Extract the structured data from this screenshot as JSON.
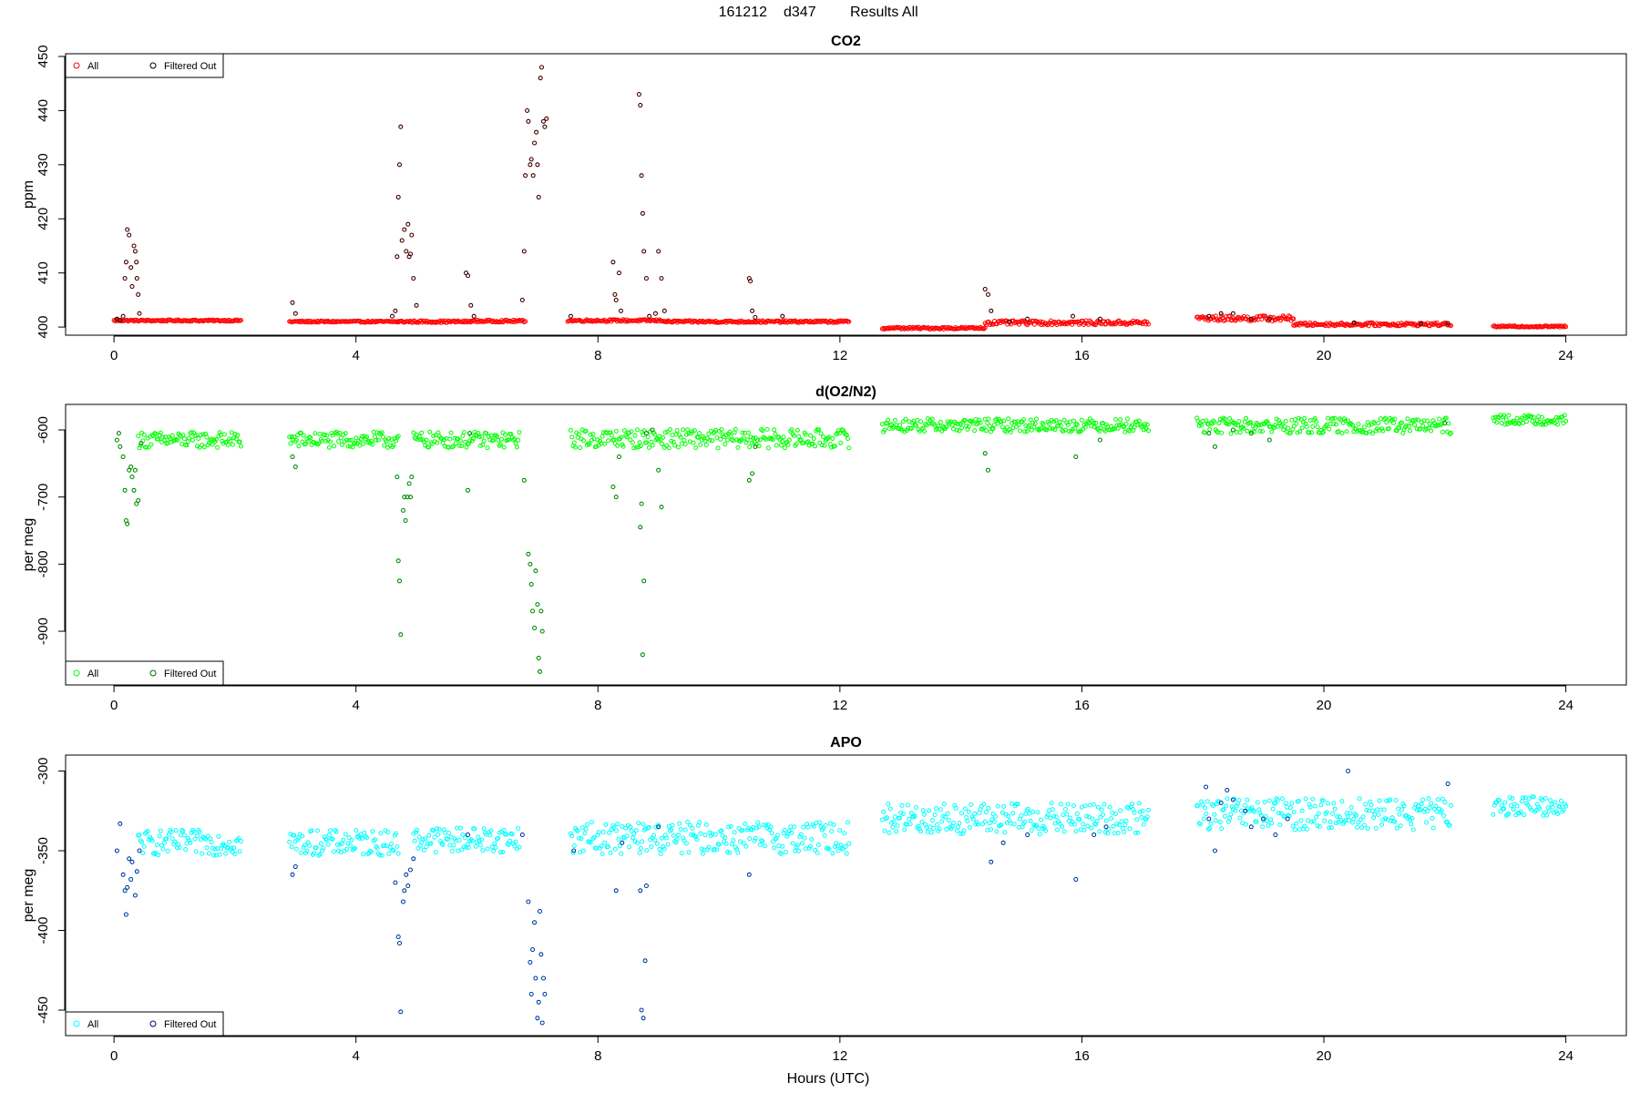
{
  "figure": {
    "title_date": "161212",
    "title_id": "d347",
    "title_rest": "Results All",
    "xlabel": "Hours (UTC)"
  },
  "chart_data": [
    {
      "type": "scatter",
      "title": "CO2",
      "ylabel": "ppm",
      "xlim": [
        -0.8,
        25.0
      ],
      "ylim": [
        398.5,
        450.5
      ],
      "xticks": [
        0,
        4,
        8,
        12,
        16,
        20,
        24
      ],
      "yticks": [
        400,
        410,
        420,
        430,
        440,
        450
      ],
      "legend": {
        "placement": "top-left",
        "entries": [
          "All",
          "Filtered Out"
        ]
      },
      "colors": {
        "all": "#ff0000",
        "filtered": "#000000"
      },
      "segments": [
        {
          "x0": 0.0,
          "x1": 2.1,
          "base": 401.2,
          "noise": 0.15
        },
        {
          "x0": 2.9,
          "x1": 4.7,
          "base": 401.0,
          "noise": 0.15
        },
        {
          "x0": 4.7,
          "x1": 5.9,
          "base": 401.0,
          "noise": 0.2
        },
        {
          "x0": 5.9,
          "x1": 6.8,
          "base": 401.1,
          "noise": 0.2
        },
        {
          "x0": 7.5,
          "x1": 9.1,
          "base": 401.2,
          "noise": 0.2
        },
        {
          "x0": 9.1,
          "x1": 12.15,
          "base": 401.0,
          "noise": 0.2
        },
        {
          "x0": 12.7,
          "x1": 14.4,
          "base": 399.8,
          "noise": 0.2
        },
        {
          "x0": 14.4,
          "x1": 17.1,
          "base": 400.8,
          "noise": 0.4
        },
        {
          "x0": 17.9,
          "x1": 19.5,
          "base": 401.6,
          "noise": 0.5
        },
        {
          "x0": 19.5,
          "x1": 22.1,
          "base": 400.5,
          "noise": 0.3
        },
        {
          "x0": 22.8,
          "x1": 24.0,
          "base": 400.1,
          "noise": 0.15
        }
      ],
      "filtered_points": [
        [
          0.05,
          401.5
        ],
        [
          0.1,
          401.3
        ],
        [
          0.15,
          402.0
        ],
        [
          0.18,
          409.0
        ],
        [
          0.2,
          412.0
        ],
        [
          0.22,
          418.0
        ],
        [
          0.25,
          417.0
        ],
        [
          0.28,
          411.0
        ],
        [
          0.3,
          407.5
        ],
        [
          0.33,
          415.0
        ],
        [
          0.35,
          414.0
        ],
        [
          0.37,
          412.0
        ],
        [
          0.38,
          409.0
        ],
        [
          0.4,
          406.0
        ],
        [
          0.42,
          402.5
        ],
        [
          2.95,
          404.5
        ],
        [
          3.0,
          402.5
        ],
        [
          4.6,
          402.0
        ],
        [
          4.65,
          403.0
        ],
        [
          4.68,
          413.0
        ],
        [
          4.7,
          424.0
        ],
        [
          4.72,
          430.0
        ],
        [
          4.74,
          437.0
        ],
        [
          4.76,
          416.0
        ],
        [
          4.8,
          418.0
        ],
        [
          4.83,
          414.0
        ],
        [
          4.86,
          419.0
        ],
        [
          4.88,
          413.0
        ],
        [
          4.9,
          413.5
        ],
        [
          4.92,
          417.0
        ],
        [
          4.95,
          409.0
        ],
        [
          5.0,
          404.0
        ],
        [
          5.82,
          410.0
        ],
        [
          5.85,
          409.5
        ],
        [
          5.9,
          404.0
        ],
        [
          5.95,
          402.0
        ],
        [
          6.75,
          405.0
        ],
        [
          6.78,
          414.0
        ],
        [
          6.8,
          428.0
        ],
        [
          6.83,
          440.0
        ],
        [
          6.85,
          438.0
        ],
        [
          6.88,
          430.0
        ],
        [
          6.9,
          431.0
        ],
        [
          6.93,
          428.0
        ],
        [
          6.95,
          434.0
        ],
        [
          6.98,
          436.0
        ],
        [
          7.0,
          430.0
        ],
        [
          7.02,
          424.0
        ],
        [
          7.05,
          446.0
        ],
        [
          7.07,
          448.0
        ],
        [
          7.1,
          438.0
        ],
        [
          7.12,
          437.0
        ],
        [
          7.15,
          438.5
        ],
        [
          7.55,
          402.0
        ],
        [
          8.25,
          412.0
        ],
        [
          8.28,
          406.0
        ],
        [
          8.3,
          405.0
        ],
        [
          8.35,
          410.0
        ],
        [
          8.38,
          403.0
        ],
        [
          8.68,
          443.0
        ],
        [
          8.7,
          441.0
        ],
        [
          8.72,
          428.0
        ],
        [
          8.74,
          421.0
        ],
        [
          8.76,
          414.0
        ],
        [
          8.8,
          409.0
        ],
        [
          8.85,
          402.0
        ],
        [
          8.95,
          402.5
        ],
        [
          9.0,
          414.0
        ],
        [
          9.05,
          409.0
        ],
        [
          9.1,
          403.0
        ],
        [
          10.5,
          409.0
        ],
        [
          10.52,
          408.5
        ],
        [
          10.55,
          403.0
        ],
        [
          10.6,
          401.8
        ],
        [
          11.05,
          402.0
        ],
        [
          14.4,
          407.0
        ],
        [
          14.45,
          406.0
        ],
        [
          14.5,
          403.0
        ],
        [
          14.8,
          401.0
        ],
        [
          15.1,
          401.5
        ],
        [
          15.85,
          402.0
        ],
        [
          16.3,
          401.5
        ],
        [
          18.1,
          402.0
        ],
        [
          18.3,
          402.5
        ],
        [
          18.5,
          402.5
        ],
        [
          18.8,
          401.5
        ],
        [
          19.1,
          401.5
        ],
        [
          20.5,
          400.8
        ],
        [
          21.6,
          400.6
        ],
        [
          22.05,
          400.7
        ]
      ]
    },
    {
      "type": "scatter",
      "title": "d(O2/N2)",
      "ylabel": "per meg",
      "xlim": [
        -0.8,
        25.0
      ],
      "ylim": [
        -980,
        -562
      ],
      "xticks": [
        0,
        4,
        8,
        12,
        16,
        20,
        24
      ],
      "yticks": [
        -600,
        -700,
        -800,
        -900
      ],
      "legend": {
        "placement": "bottom-left",
        "entries": [
          "All",
          "Filtered Out"
        ]
      },
      "colors": {
        "all": "#00ff00",
        "filtered": "#006400"
      },
      "segments": [
        {
          "x0": 0.4,
          "x1": 2.1,
          "base": -615,
          "noise": 12
        },
        {
          "x0": 2.9,
          "x1": 4.7,
          "base": -615,
          "noise": 12
        },
        {
          "x0": 4.95,
          "x1": 6.7,
          "base": -615,
          "noise": 12
        },
        {
          "x0": 7.55,
          "x1": 12.15,
          "base": -613,
          "noise": 14
        },
        {
          "x0": 12.7,
          "x1": 17.1,
          "base": -593,
          "noise": 10
        },
        {
          "x0": 17.9,
          "x1": 22.1,
          "base": -594,
          "noise": 12
        },
        {
          "x0": 22.8,
          "x1": 24.0,
          "base": -585,
          "noise": 7
        }
      ],
      "filtered_points": [
        [
          0.05,
          -615
        ],
        [
          0.08,
          -605
        ],
        [
          0.1,
          -625
        ],
        [
          0.15,
          -640
        ],
        [
          0.18,
          -690
        ],
        [
          0.2,
          -735
        ],
        [
          0.22,
          -740
        ],
        [
          0.25,
          -660
        ],
        [
          0.28,
          -655
        ],
        [
          0.3,
          -670
        ],
        [
          0.33,
          -690
        ],
        [
          0.35,
          -660
        ],
        [
          0.37,
          -710
        ],
        [
          0.4,
          -705
        ],
        [
          0.45,
          -620
        ],
        [
          2.95,
          -640
        ],
        [
          3.0,
          -655
        ],
        [
          4.68,
          -670
        ],
        [
          4.7,
          -795
        ],
        [
          4.72,
          -825
        ],
        [
          4.74,
          -905
        ],
        [
          4.78,
          -720
        ],
        [
          4.8,
          -700
        ],
        [
          4.82,
          -735
        ],
        [
          4.85,
          -700
        ],
        [
          4.88,
          -680
        ],
        [
          4.9,
          -700
        ],
        [
          4.92,
          -670
        ],
        [
          5.85,
          -690
        ],
        [
          5.88,
          -605
        ],
        [
          6.78,
          -675
        ],
        [
          6.85,
          -785
        ],
        [
          6.88,
          -800
        ],
        [
          6.9,
          -830
        ],
        [
          6.92,
          -870
        ],
        [
          6.95,
          -895
        ],
        [
          6.97,
          -810
        ],
        [
          7.0,
          -860
        ],
        [
          7.02,
          -940
        ],
        [
          7.04,
          -960
        ],
        [
          7.06,
          -870
        ],
        [
          7.08,
          -900
        ],
        [
          8.25,
          -685
        ],
        [
          8.3,
          -700
        ],
        [
          8.35,
          -640
        ],
        [
          8.7,
          -745
        ],
        [
          8.72,
          -710
        ],
        [
          8.74,
          -935
        ],
        [
          8.76,
          -825
        ],
        [
          8.8,
          -605
        ],
        [
          8.9,
          -600
        ],
        [
          9.0,
          -660
        ],
        [
          9.05,
          -715
        ],
        [
          10.5,
          -675
        ],
        [
          10.55,
          -665
        ],
        [
          10.6,
          -625
        ],
        [
          14.4,
          -635
        ],
        [
          14.45,
          -660
        ],
        [
          15.9,
          -640
        ],
        [
          16.3,
          -615
        ],
        [
          18.1,
          -605
        ],
        [
          18.2,
          -625
        ],
        [
          18.5,
          -600
        ],
        [
          18.8,
          -605
        ],
        [
          19.1,
          -615
        ],
        [
          22.0,
          -590
        ]
      ]
    },
    {
      "type": "scatter",
      "title": "APO",
      "ylabel": "per meg",
      "xlim": [
        -0.8,
        25.0
      ],
      "ylim": [
        -466,
        -290
      ],
      "xticks": [
        0,
        4,
        8,
        12,
        16,
        20,
        24
      ],
      "yticks": [
        -300,
        -350,
        -400,
        -450
      ],
      "legend": {
        "placement": "bottom-left",
        "entries": [
          "All",
          "Filtered Out"
        ]
      },
      "colors": {
        "all": "#00ffff",
        "filtered": "#000080"
      },
      "segments": [
        {
          "x0": 0.4,
          "x1": 2.1,
          "base": -345,
          "noise": 8
        },
        {
          "x0": 2.9,
          "x1": 4.7,
          "base": -345,
          "noise": 8
        },
        {
          "x0": 4.95,
          "x1": 6.7,
          "base": -343,
          "noise": 8
        },
        {
          "x0": 7.55,
          "x1": 12.15,
          "base": -342,
          "noise": 10
        },
        {
          "x0": 12.7,
          "x1": 17.1,
          "base": -330,
          "noise": 10
        },
        {
          "x0": 17.9,
          "x1": 22.1,
          "base": -327,
          "noise": 10
        },
        {
          "x0": 22.8,
          "x1": 24.0,
          "base": -322,
          "noise": 6
        }
      ],
      "filtered_points": [
        [
          0.05,
          -350
        ],
        [
          0.1,
          -333
        ],
        [
          0.15,
          -365
        ],
        [
          0.18,
          -375
        ],
        [
          0.2,
          -390
        ],
        [
          0.22,
          -373
        ],
        [
          0.25,
          -355
        ],
        [
          0.28,
          -368
        ],
        [
          0.3,
          -357
        ],
        [
          0.35,
          -378
        ],
        [
          0.38,
          -363
        ],
        [
          0.42,
          -350
        ],
        [
          2.95,
          -365
        ],
        [
          3.0,
          -360
        ],
        [
          4.65,
          -370
        ],
        [
          4.7,
          -404
        ],
        [
          4.72,
          -408
        ],
        [
          4.74,
          -451
        ],
        [
          4.78,
          -382
        ],
        [
          4.8,
          -375
        ],
        [
          4.83,
          -365
        ],
        [
          4.86,
          -372
        ],
        [
          4.9,
          -362
        ],
        [
          4.95,
          -355
        ],
        [
          5.85,
          -340
        ],
        [
          6.75,
          -340
        ],
        [
          6.85,
          -382
        ],
        [
          6.88,
          -420
        ],
        [
          6.9,
          -440
        ],
        [
          6.92,
          -412
        ],
        [
          6.95,
          -395
        ],
        [
          6.97,
          -430
        ],
        [
          7.0,
          -455
        ],
        [
          7.02,
          -445
        ],
        [
          7.04,
          -388
        ],
        [
          7.06,
          -415
        ],
        [
          7.08,
          -458
        ],
        [
          7.1,
          -430
        ],
        [
          7.12,
          -440
        ],
        [
          7.6,
          -350
        ],
        [
          8.3,
          -375
        ],
        [
          8.4,
          -345
        ],
        [
          8.7,
          -375
        ],
        [
          8.72,
          -450
        ],
        [
          8.75,
          -455
        ],
        [
          8.78,
          -419
        ],
        [
          8.8,
          -372
        ],
        [
          9.0,
          -335
        ],
        [
          10.5,
          -365
        ],
        [
          14.5,
          -357
        ],
        [
          14.7,
          -345
        ],
        [
          15.1,
          -340
        ],
        [
          15.9,
          -368
        ],
        [
          16.2,
          -340
        ],
        [
          16.4,
          -335
        ],
        [
          18.05,
          -310
        ],
        [
          18.1,
          -330
        ],
        [
          18.2,
          -350
        ],
        [
          18.3,
          -320
        ],
        [
          18.4,
          -312
        ],
        [
          18.5,
          -318
        ],
        [
          18.7,
          -325
        ],
        [
          18.8,
          -335
        ],
        [
          19.0,
          -330
        ],
        [
          19.2,
          -340
        ],
        [
          19.4,
          -330
        ],
        [
          20.4,
          -300
        ],
        [
          22.05,
          -308
        ]
      ]
    }
  ]
}
